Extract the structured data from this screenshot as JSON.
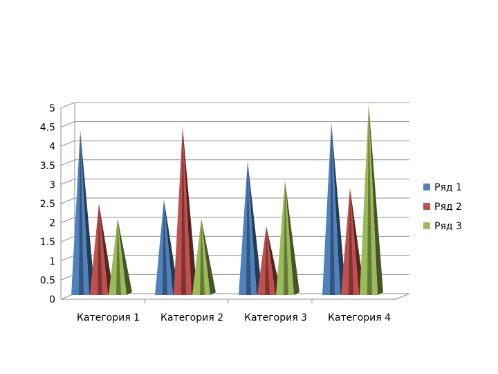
{
  "chart_data": {
    "type": "bar",
    "style": "3d-cone",
    "categories": [
      "Категория 1",
      "Категория 2",
      "Категория 3",
      "Категория 4"
    ],
    "series": [
      {
        "name": "Ряд 1",
        "values": [
          4.3,
          2.5,
          3.5,
          4.5
        ],
        "color": "#4F81BD"
      },
      {
        "name": "Ряд 2",
        "values": [
          2.4,
          4.4,
          1.8,
          2.8
        ],
        "color": "#C0504D"
      },
      {
        "name": "Ряд 3",
        "values": [
          2.0,
          2.0,
          3.0,
          5.0
        ],
        "color": "#9BBB59"
      }
    ],
    "yticks": [
      "0",
      "0.5",
      "1",
      "1.5",
      "2",
      "2.5",
      "3",
      "3.5",
      "4",
      "4.5",
      "5"
    ],
    "ylim": [
      0,
      5
    ],
    "grid": true,
    "legend_position": "right"
  }
}
